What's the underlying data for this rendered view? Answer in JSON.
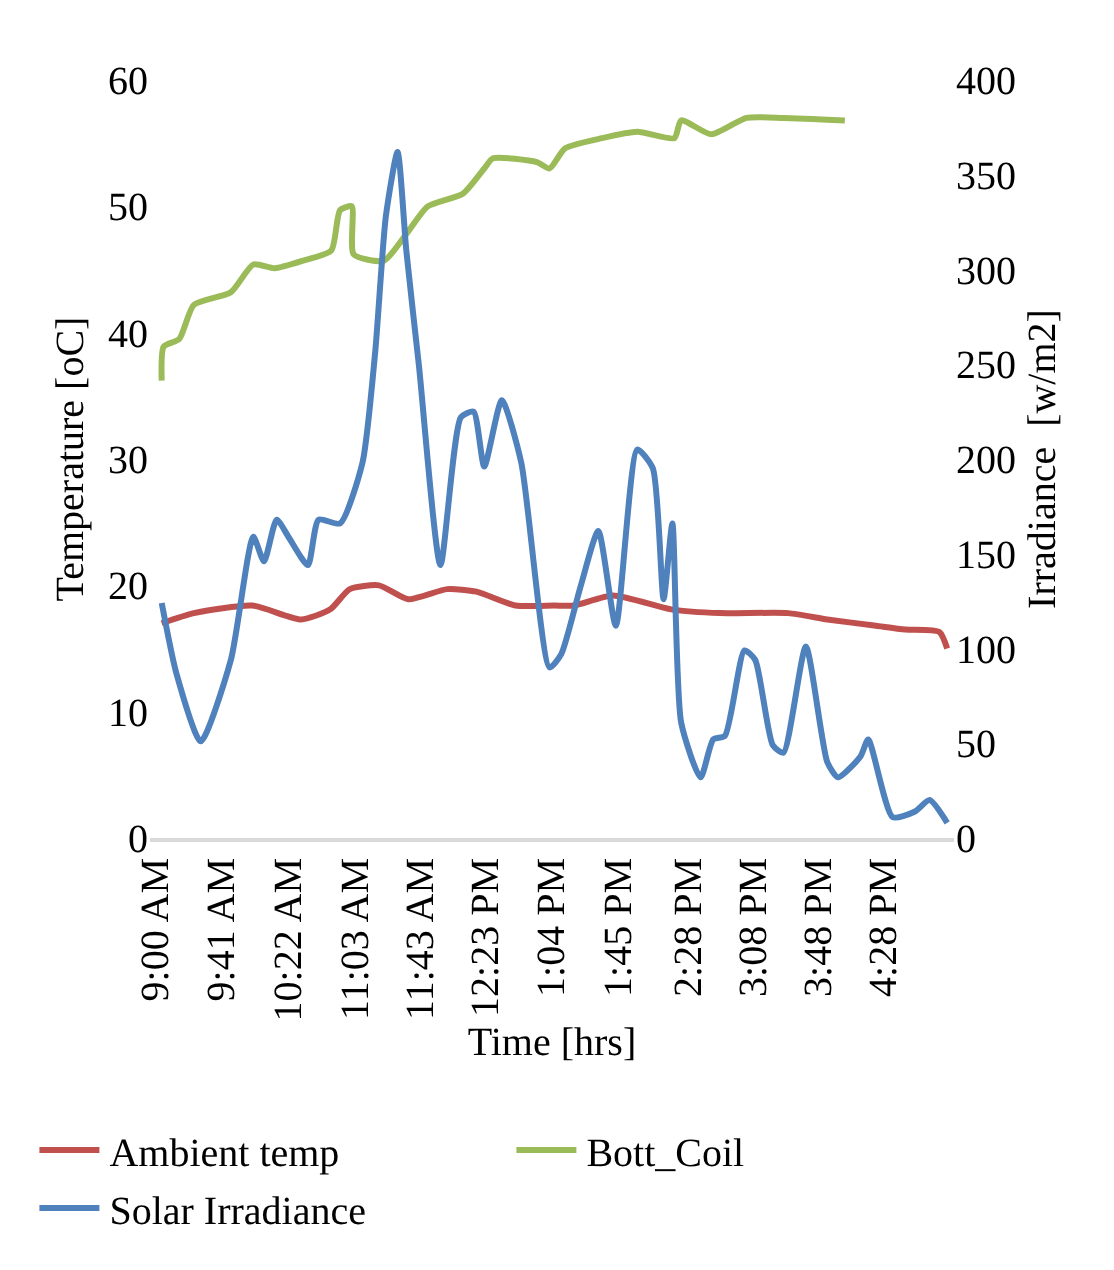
{
  "chart_data": {
    "type": "line",
    "xlabel": "Time [hrs]",
    "ylabel": "Temperature [oC]",
    "y2label": "Irradiance  [w/m2]",
    "xlim": [
      8.95,
      17.2
    ],
    "xticks": [
      {
        "value": 9.0,
        "label": "9:00 AM"
      },
      {
        "value": 9.683,
        "label": "9:41 AM"
      },
      {
        "value": 10.367,
        "label": "10:22 AM"
      },
      {
        "value": 11.05,
        "label": "11:03 AM"
      },
      {
        "value": 11.717,
        "label": "11:43 AM"
      },
      {
        "value": 12.383,
        "label": "12:23 PM"
      },
      {
        "value": 13.067,
        "label": "1:04 PM"
      },
      {
        "value": 13.75,
        "label": "1:45 PM"
      },
      {
        "value": 14.467,
        "label": "2:28 PM"
      },
      {
        "value": 15.133,
        "label": "3:08 PM"
      },
      {
        "value": 15.8,
        "label": "3:48 PM"
      },
      {
        "value": 16.467,
        "label": "4:28 PM"
      }
    ],
    "ylim": [
      0,
      60
    ],
    "yticks": [
      0,
      10,
      20,
      30,
      40,
      50,
      60
    ],
    "y2lim": [
      0,
      400
    ],
    "y2ticks": [
      0,
      50,
      100,
      150,
      200,
      250,
      300,
      350,
      400
    ],
    "legend": "bottom",
    "marker": "none",
    "line_style": "solid",
    "series": [
      {
        "name": "Ambient temp",
        "color": "#c0504d",
        "x": [
          9.07,
          9.4,
          10.0,
          10.5,
          10.8,
          11.0,
          11.3,
          11.6,
          12.0,
          12.3,
          12.7,
          13.1,
          13.3,
          13.7,
          14.3,
          14.8,
          15.5,
          15.9,
          16.4,
          16.7,
          17.05,
          17.13
        ],
        "values": [
          17.0,
          17.8,
          18.4,
          17.3,
          18.1,
          19.7,
          20.0,
          18.9,
          19.7,
          19.5,
          18.4,
          18.4,
          18.4,
          19.2,
          18.1,
          17.8,
          17.8,
          17.3,
          16.8,
          16.5,
          16.3,
          15.0
        ]
      },
      {
        "name": "Bott_Coil",
        "color": "#9bbb59",
        "x": [
          9.07,
          9.09,
          9.25,
          9.4,
          9.78,
          10.01,
          10.23,
          10.52,
          10.81,
          10.9,
          11.02,
          11.04,
          11.35,
          11.58,
          11.8,
          12.16,
          12.38,
          12.47,
          12.92,
          13.05,
          13.21,
          13.59,
          13.95,
          14.33,
          14.4,
          14.71,
          15.07,
          15.45,
          16.08
        ],
        "values": [
          36.2,
          38.9,
          39.5,
          42.2,
          43.2,
          45.4,
          45.1,
          45.7,
          46.5,
          49.7,
          50.0,
          46.2,
          45.7,
          47.8,
          50.0,
          51.0,
          53.0,
          53.8,
          53.5,
          53.0,
          54.6,
          55.4,
          55.9,
          55.4,
          56.8,
          55.7,
          57.0,
          57.0,
          56.8
        ]
      },
      {
        "name": "Solar Irradiance",
        "color": "#4f81bd",
        "axis": "y2",
        "x": [
          9.07,
          9.22,
          9.47,
          9.78,
          10.01,
          10.12,
          10.25,
          10.37,
          10.57,
          10.68,
          10.9,
          11.13,
          11.26,
          11.37,
          11.49,
          11.58,
          11.71,
          11.93,
          12.14,
          12.27,
          12.38,
          12.56,
          12.76,
          13.05,
          13.17,
          13.37,
          13.55,
          13.73,
          13.95,
          14.11,
          14.22,
          14.31,
          14.4,
          14.6,
          14.73,
          14.85,
          15.05,
          15.16,
          15.34,
          15.45,
          15.68,
          15.9,
          16.01,
          16.24,
          16.32,
          16.57,
          16.8,
          16.95,
          17.13
        ],
        "values": [
          124,
          87,
          51,
          94,
          159,
          146,
          168,
          159,
          144,
          168,
          166,
          198,
          256,
          328,
          362,
          310,
          249,
          144,
          222,
          225,
          196,
          231,
          198,
          90,
          97,
          133,
          162,
          112,
          205,
          195,
          126,
          166,
          61,
          32,
          52,
          54,
          99,
          94,
          49,
          45,
          101,
          40,
          32,
          43,
          52,
          11,
          14,
          20,
          8
        ]
      }
    ]
  }
}
